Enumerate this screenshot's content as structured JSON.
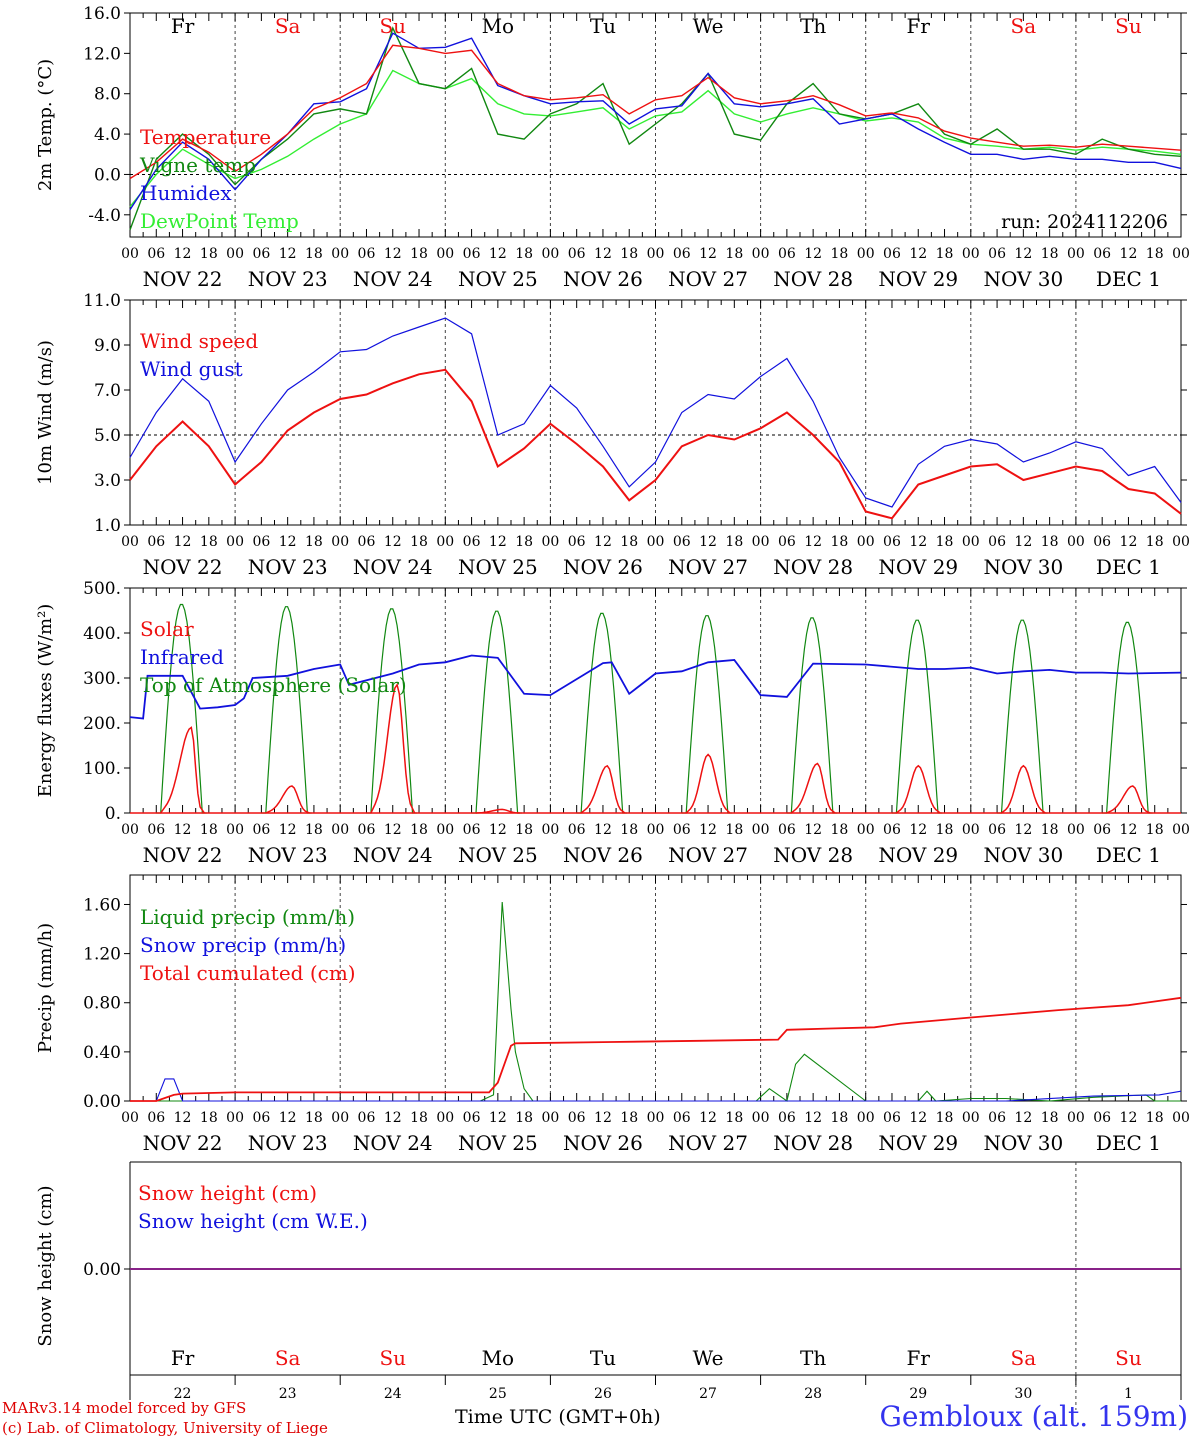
{
  "colors": {
    "red": "#ee1111",
    "green": "#118811",
    "blue": "#1111dd",
    "lightgreen": "#33ee33",
    "purple": "#882288"
  },
  "footer": {
    "credit_line1": "MARv3.14 model forced by GFS",
    "credit_line2": "(c) Lab. of Climatology, University of Liege",
    "x_title": "Time UTC (GMT+0h)",
    "station": "Gembloux (alt. 159m)"
  },
  "chart_data": [
    {
      "type": "line",
      "id": "temp",
      "ylabel": "2m Temp. (°C)",
      "ylim": [
        -6.2,
        16
      ],
      "yticks": [
        -4,
        0,
        4,
        8,
        12,
        16
      ],
      "ytick_labels": [
        "-4.0",
        "0.0",
        "4.0",
        "8.0",
        "12.0",
        "16.0"
      ],
      "ref_line": 0,
      "day_names": [
        "Fr",
        "Sa",
        "Su",
        "Mo",
        "Tu",
        "We",
        "Th",
        "Fr",
        "Sa",
        "Su"
      ],
      "day_name_weekend": [
        false,
        true,
        true,
        false,
        false,
        false,
        false,
        false,
        true,
        true
      ],
      "run_label": "run: 2024112206",
      "hour_ticks": [
        "00",
        "06",
        "12",
        "18"
      ],
      "date_labels": [
        "NOV 22",
        "NOV 23",
        "NOV 24",
        "NOV 25",
        "NOV 26",
        "NOV 27",
        "NOV 28",
        "NOV 29",
        "NOV 30",
        "DEC  1"
      ],
      "x_hours": [
        0,
        6,
        12,
        18,
        24,
        30,
        36,
        42,
        48,
        54,
        60,
        66,
        72,
        78,
        84,
        90,
        96,
        102,
        108,
        114,
        120,
        126,
        132,
        138,
        144,
        150,
        156,
        162,
        168,
        174,
        180,
        186,
        192,
        198,
        204,
        210,
        216,
        222,
        228,
        234,
        240
      ],
      "series": [
        {
          "name": "Temperature",
          "color": "red",
          "values": [
            -0.4,
            1.2,
            3.5,
            2.2,
            0.3,
            2.0,
            4.0,
            6.5,
            7.6,
            9.0,
            12.8,
            12.5,
            12.0,
            12.3,
            9.0,
            7.8,
            7.4,
            7.6,
            7.9,
            6.0,
            7.4,
            7.8,
            9.6,
            7.6,
            7.0,
            7.3,
            7.8,
            6.9,
            5.8,
            6.1,
            5.6,
            4.3,
            3.6,
            3.2,
            2.8,
            2.9,
            2.7,
            3.0,
            2.8,
            2.6,
            2.4
          ]
        },
        {
          "name": "Vigne temp",
          "color": "green",
          "values": [
            -5.5,
            1.5,
            4.0,
            2.0,
            -1.0,
            1.5,
            3.5,
            6.0,
            6.5,
            6.0,
            14.5,
            9.0,
            8.5,
            10.5,
            4.0,
            3.5,
            6.0,
            7.0,
            9.0,
            3.0,
            5.0,
            7.0,
            10.0,
            4.0,
            3.4,
            7.0,
            9.0,
            6.0,
            5.5,
            6.0,
            7.0,
            4.0,
            3.0,
            4.5,
            2.5,
            2.5,
            2.0,
            3.5,
            2.5,
            2.0,
            1.8
          ]
        },
        {
          "name": "Humidex",
          "color": "blue",
          "values": [
            -3.5,
            0.5,
            3.2,
            1.5,
            -1.5,
            1.5,
            4.0,
            7.0,
            7.2,
            8.5,
            14.0,
            12.5,
            12.6,
            13.5,
            8.8,
            7.8,
            7.0,
            7.2,
            7.3,
            5.0,
            6.5,
            6.8,
            10.0,
            7.0,
            6.7,
            7.0,
            7.5,
            5.0,
            5.5,
            6.0,
            4.5,
            3.2,
            2.0,
            2.0,
            1.5,
            1.8,
            1.5,
            1.5,
            1.2,
            1.2,
            0.6
          ]
        },
        {
          "name": "DewPoint Temp",
          "color": "lightgreen",
          "values": [
            -3.2,
            0.0,
            2.5,
            1.0,
            -0.4,
            0.5,
            1.8,
            3.5,
            5.0,
            6.0,
            10.3,
            9.0,
            8.5,
            9.5,
            7.0,
            6.0,
            5.8,
            6.2,
            6.6,
            4.5,
            5.8,
            6.2,
            8.3,
            6.0,
            5.2,
            6.0,
            6.6,
            6.0,
            5.3,
            5.6,
            5.2,
            3.6,
            3.0,
            2.8,
            2.5,
            2.7,
            2.4,
            2.7,
            2.5,
            2.3,
            2.0
          ]
        }
      ]
    },
    {
      "type": "line",
      "id": "wind",
      "ylabel": "10m Wind (m/s)",
      "ylim": [
        1,
        11
      ],
      "yticks": [
        1,
        3,
        5,
        7,
        9,
        11
      ],
      "ytick_labels": [
        "1.0",
        "3.0",
        "5.0",
        "7.0",
        "9.0",
        "11.0"
      ],
      "ref_line": 5,
      "hour_ticks": [
        "00",
        "06",
        "12",
        "18"
      ],
      "date_labels": [
        "NOV 22",
        "NOV 23",
        "NOV 24",
        "NOV 25",
        "NOV 26",
        "NOV 27",
        "NOV 28",
        "NOV 29",
        "NOV 30",
        "DEC  1"
      ],
      "x_hours": [
        0,
        6,
        12,
        18,
        24,
        30,
        36,
        42,
        48,
        54,
        60,
        66,
        72,
        78,
        84,
        90,
        96,
        102,
        108,
        114,
        120,
        126,
        132,
        138,
        144,
        150,
        156,
        162,
        168,
        174,
        180,
        186,
        192,
        198,
        204,
        210,
        216,
        222,
        228,
        234,
        240
      ],
      "series": [
        {
          "name": "Wind speed",
          "color": "red",
          "values": [
            3.0,
            4.5,
            5.6,
            4.5,
            2.8,
            3.8,
            5.2,
            6.0,
            6.6,
            6.8,
            7.3,
            7.7,
            7.9,
            6.5,
            3.6,
            4.4,
            5.5,
            4.6,
            3.6,
            2.1,
            3.0,
            4.5,
            5.0,
            4.8,
            5.3,
            6.0,
            5.0,
            3.8,
            1.6,
            1.3,
            2.8,
            3.2,
            3.6,
            3.7,
            3.0,
            3.3,
            3.6,
            3.4,
            2.6,
            2.4,
            1.5
          ]
        },
        {
          "name": "Wind gust",
          "color": "blue",
          "values": [
            4.0,
            6.0,
            7.5,
            6.5,
            3.8,
            5.5,
            7.0,
            7.8,
            8.7,
            8.8,
            9.4,
            9.8,
            10.2,
            9.5,
            5.0,
            5.5,
            7.2,
            6.2,
            4.5,
            2.7,
            3.8,
            6.0,
            6.8,
            6.6,
            7.6,
            8.4,
            6.5,
            4.0,
            2.2,
            1.8,
            3.7,
            4.5,
            4.8,
            4.6,
            3.8,
            4.2,
            4.7,
            4.4,
            3.2,
            3.6,
            2.0
          ]
        }
      ]
    },
    {
      "type": "line",
      "id": "energy",
      "ylabel": "Energy fluxes (W/m²)",
      "ylim": [
        0,
        500
      ],
      "yticks": [
        0,
        100,
        200,
        300,
        400,
        500
      ],
      "ytick_labels": [
        "0.",
        "100.",
        "200.",
        "300.",
        "400.",
        "500."
      ],
      "hour_ticks": [
        "00",
        "06",
        "12",
        "18"
      ],
      "date_labels": [
        "NOV 22",
        "NOV 23",
        "NOV 24",
        "NOV 25",
        "NOV 26",
        "NOV 27",
        "NOV 28",
        "NOV 29",
        "NOV 30",
        "DEC  1"
      ],
      "series": [
        {
          "name": "Solar",
          "color": "red",
          "peak_hours": [
            14,
            13,
            13,
            13,
            13,
            12,
            13,
            12,
            12,
            13
          ],
          "peak_values": [
            190,
            60,
            285,
            8,
            105,
            130,
            110,
            105,
            105,
            60
          ]
        },
        {
          "name": "Infrared",
          "color": "blue",
          "x_hours": [
            0,
            3,
            4,
            12,
            16,
            20,
            24,
            26,
            28,
            36,
            42,
            48,
            50,
            60,
            66,
            72,
            78,
            84,
            90,
            96,
            108,
            110,
            114,
            120,
            126,
            132,
            138,
            144,
            150,
            156,
            168,
            180,
            186,
            192,
            198,
            204,
            210,
            216,
            222,
            228,
            240
          ],
          "values": [
            213,
            210,
            305,
            305,
            232,
            235,
            240,
            255,
            300,
            305,
            320,
            330,
            285,
            310,
            330,
            335,
            350,
            345,
            265,
            262,
            333,
            335,
            265,
            310,
            315,
            335,
            340,
            262,
            258,
            332,
            330,
            320,
            320,
            323,
            310,
            315,
            318,
            312,
            312,
            310,
            312
          ]
        },
        {
          "name": "Top of Atmosphere (Solar)",
          "color": "green",
          "peak_hours": [
            12,
            12,
            12,
            12,
            12,
            12,
            12,
            12,
            12,
            12
          ],
          "peak_values": [
            465,
            460,
            455,
            450,
            445,
            440,
            435,
            430,
            430,
            425
          ]
        }
      ]
    },
    {
      "type": "line",
      "id": "precip",
      "ylabel": "Precip (mm/h)",
      "ylim": [
        0,
        1.84
      ],
      "yticks": [
        0,
        0.4,
        0.8,
        1.2,
        1.6
      ],
      "ytick_labels": [
        "0.00",
        "0.40",
        "0.80",
        "1.20",
        "1.60"
      ],
      "hour_ticks": [
        "00",
        "06",
        "12",
        "18"
      ],
      "date_labels": [
        "NOV 22",
        "NOV 23",
        "NOV 24",
        "NOV 25",
        "NOV 26",
        "NOV 27",
        "NOV 28",
        "NOV 29",
        "NOV 30",
        "DEC  1"
      ],
      "series": [
        {
          "name": "Liquid precip (mm/h)",
          "color": "green",
          "x_hours": [
            0,
            80,
            83,
            85,
            87,
            88,
            90,
            92,
            120,
            130,
            136,
            143,
            146,
            150,
            152,
            154,
            168,
            180,
            182,
            184,
            192,
            200,
            210,
            220,
            232,
            234,
            240
          ],
          "values": [
            0,
            0,
            0.05,
            1.62,
            0.75,
            0.4,
            0.1,
            0,
            0,
            0,
            0,
            0,
            0.1,
            0,
            0.3,
            0.38,
            0,
            0,
            0.08,
            0,
            0.02,
            0.02,
            0,
            0.03,
            0.05,
            0,
            0
          ]
        },
        {
          "name": "Snow precip (mm/h)",
          "color": "blue",
          "x_hours": [
            0,
            6,
            8,
            10,
            12,
            200,
            220,
            235,
            240
          ],
          "values": [
            0,
            0,
            0.18,
            0.18,
            0,
            0,
            0.04,
            0.05,
            0.08
          ]
        },
        {
          "name": "Total cumulated (cm)",
          "color": "red",
          "x_hours": [
            0,
            6,
            10,
            12,
            24,
            48,
            72,
            82,
            84,
            86,
            87,
            88,
            110,
            130,
            148,
            150,
            160,
            170,
            176,
            192,
            212,
            216,
            228,
            240
          ],
          "values": [
            0,
            0,
            0.05,
            0.06,
            0.07,
            0.07,
            0.07,
            0.07,
            0.15,
            0.35,
            0.45,
            0.47,
            0.48,
            0.49,
            0.5,
            0.58,
            0.59,
            0.6,
            0.63,
            0.68,
            0.74,
            0.75,
            0.78,
            0.84
          ]
        }
      ]
    },
    {
      "type": "line",
      "id": "snow",
      "ylabel": "Snow height (cm)",
      "ytick_labels": [
        "0.00"
      ],
      "day_names": [
        "Fr",
        "Sa",
        "Su",
        "Mo",
        "Tu",
        "We",
        "Th",
        "Fr",
        "Sa",
        "Su"
      ],
      "day_name_weekend": [
        false,
        true,
        true,
        false,
        false,
        false,
        false,
        false,
        true,
        true
      ],
      "day_numbers": [
        "22",
        "23",
        "24",
        "25",
        "26",
        "27",
        "28",
        "29",
        "30",
        "1"
      ],
      "series": [
        {
          "name": "Snow height (cm)",
          "color": "red",
          "values": [
            0,
            0
          ]
        },
        {
          "name": "Snow height (cm W.E.)",
          "color": "blue",
          "values": [
            0,
            0
          ]
        }
      ]
    }
  ]
}
